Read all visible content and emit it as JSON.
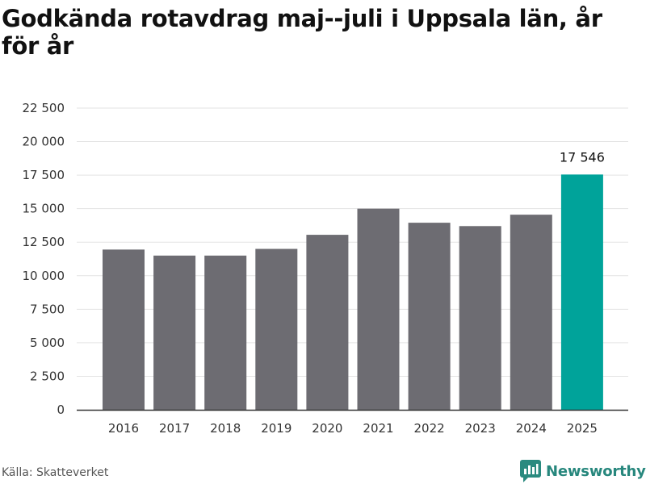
{
  "title": "Godkända rotavdrag maj--juli i Uppsala län, år för år",
  "source": "Källa: Skatteverket",
  "brand": {
    "name": "Newsworthy",
    "icon": "newsworthy-logo-icon",
    "color": "#2a8a7f"
  },
  "colors": {
    "bar": "#6d6c72",
    "highlight": "#00a39a",
    "grid": "#e3e3e3",
    "axis": "#333333"
  },
  "chart_data": {
    "type": "bar",
    "categories": [
      "2016",
      "2017",
      "2018",
      "2019",
      "2020",
      "2021",
      "2022",
      "2023",
      "2024",
      "2025"
    ],
    "values": [
      11950,
      11500,
      11500,
      12000,
      13050,
      15000,
      13950,
      13700,
      14550,
      17546
    ],
    "highlight_index": 9,
    "data_labels": [
      {
        "index": 9,
        "text": "17 546"
      }
    ],
    "title": "Godkända rotavdrag maj--juli i Uppsala län, år för år",
    "xlabel": "",
    "ylabel": "",
    "ylim": [
      0,
      22500
    ],
    "yticks": [
      0,
      2500,
      5000,
      7500,
      10000,
      12500,
      15000,
      17500,
      20000,
      22500
    ],
    "ytick_labels": [
      "0",
      "2 500",
      "5 000",
      "7 500",
      "10 000",
      "12 500",
      "15 000",
      "17 500",
      "20 000",
      "22 500"
    ],
    "grid": true,
    "legend": "none"
  }
}
